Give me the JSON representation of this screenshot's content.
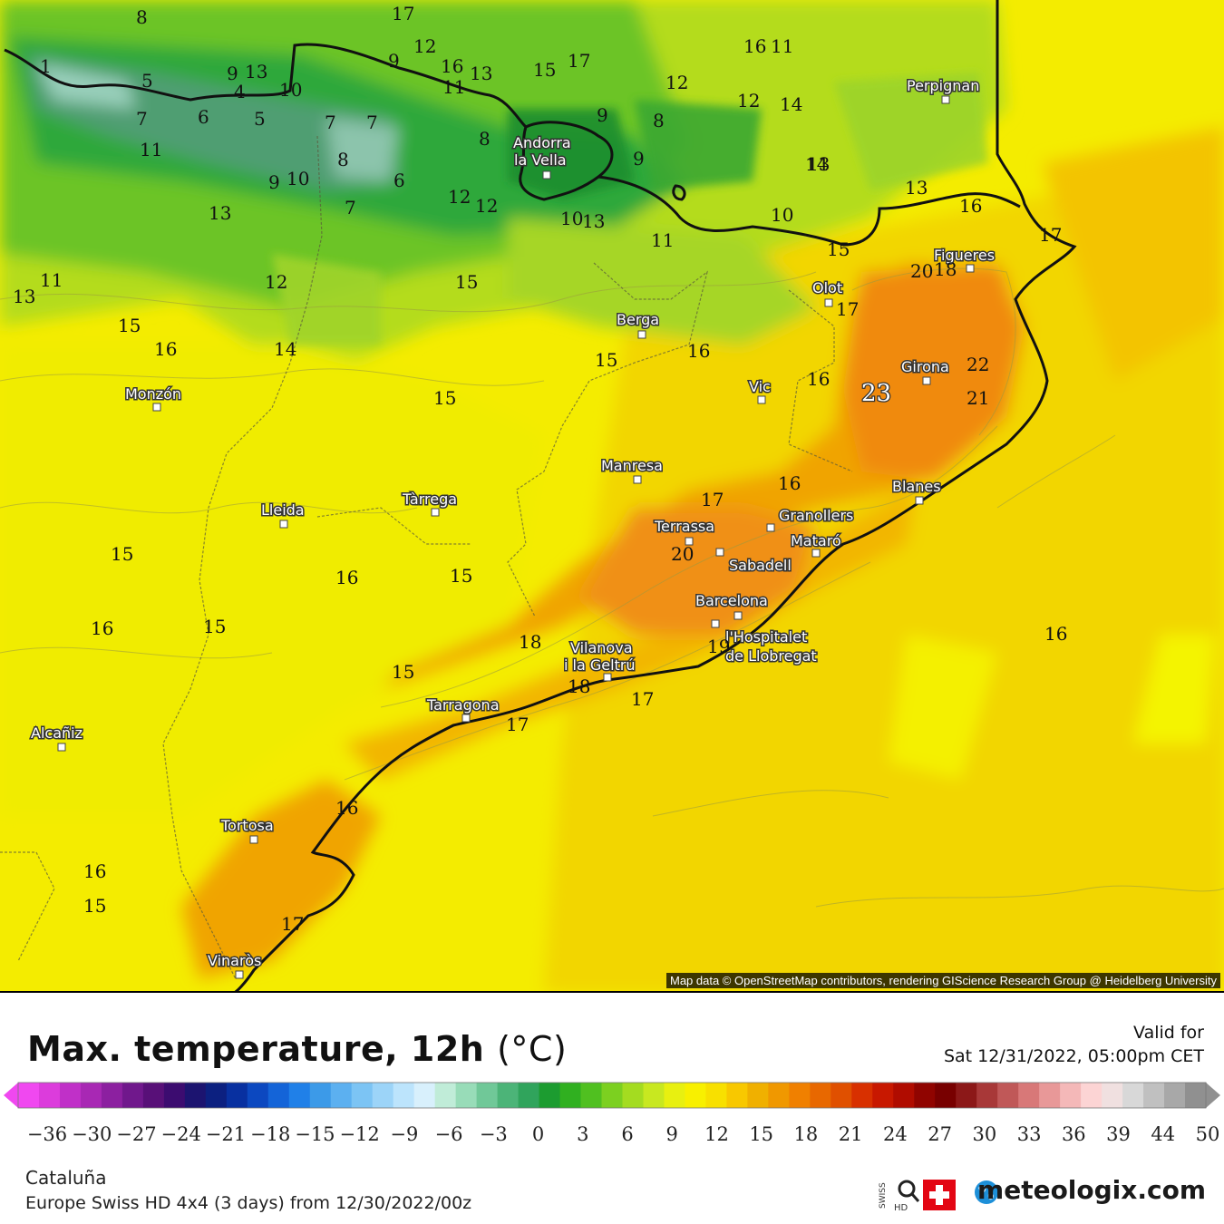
{
  "map": {
    "attribution": "Map data © OpenStreetMap contributors, rendering GIScience Research Group @ Heidelberg University",
    "cities": [
      {
        "name": "Perpignan"
      },
      {
        "name": "Andorra"
      },
      {
        "name": "la Vella"
      },
      {
        "name": "Figueres"
      },
      {
        "name": "Olot"
      },
      {
        "name": "Berga"
      },
      {
        "name": "Girona"
      },
      {
        "name": "Vic"
      },
      {
        "name": "Monzón"
      },
      {
        "name": "Manresa"
      },
      {
        "name": "Blanes"
      },
      {
        "name": "Tàrrega"
      },
      {
        "name": "Lleida"
      },
      {
        "name": "Granollers"
      },
      {
        "name": "Terrassa"
      },
      {
        "name": "Mataró"
      },
      {
        "name": "Sabadell"
      },
      {
        "name": "Barcelona"
      },
      {
        "name": "l'Hospitalet"
      },
      {
        "name": "de Llobregat"
      },
      {
        "name": "Vilanova"
      },
      {
        "name": "i la Geltrú"
      },
      {
        "name": "Tarragona"
      },
      {
        "name": "Alcañiz"
      },
      {
        "name": "Tortosa"
      },
      {
        "name": "Vinaròs"
      }
    ],
    "values": [
      "8",
      "17",
      "12",
      "16",
      "11",
      "1",
      "9",
      "13",
      "4",
      "10",
      "9",
      "12",
      "16",
      "13",
      "15",
      "17",
      "12",
      "13",
      "14",
      "11",
      "5",
      "6",
      "7",
      "5",
      "7",
      "7",
      "8",
      "9",
      "8",
      "11",
      "8",
      "6",
      "9",
      "10",
      "9",
      "12",
      "12",
      "10",
      "13",
      "14",
      "13",
      "16",
      "13",
      "7",
      "11",
      "10",
      "15",
      "17",
      "11",
      "12",
      "15",
      "13",
      "15",
      "14",
      "20",
      "18",
      "17",
      "16",
      "15",
      "15",
      "16",
      "16",
      "22",
      "23",
      "21",
      "15",
      "17",
      "16",
      "15",
      "16",
      "15",
      "16",
      "15",
      "20",
      "18",
      "19",
      "16",
      "17",
      "17",
      "18",
      "16",
      "16",
      "15",
      "17"
    ]
  },
  "header": {
    "title": "Max. temperature, 12h",
    "unit": "(°C)",
    "valid_label": "Valid for",
    "valid_date": "Sat 12/31/2022, 05:00pm CET"
  },
  "legend": {
    "ticks": [
      "−36",
      "−30",
      "−27",
      "−24",
      "−21",
      "−18",
      "−15",
      "−12",
      "−9",
      "−6",
      "−3",
      "0",
      "3",
      "6",
      "9",
      "12",
      "15",
      "18",
      "21",
      "24",
      "27",
      "30",
      "33",
      "36",
      "39",
      "44",
      "50"
    ],
    "colors": [
      "#f048f0",
      "#dc3cdc",
      "#c030c8",
      "#a828b4",
      "#8c20a0",
      "#70188c",
      "#581078",
      "#3c0c70",
      "#1c1470",
      "#0c2080",
      "#0830a0",
      "#0c48c0",
      "#1464d8",
      "#2080e8",
      "#3c9ae8",
      "#5cb0f0",
      "#7cc4f4",
      "#9cd4f8",
      "#bce4fc",
      "#d8f0fc",
      "#c0ecd8",
      "#98dcb8",
      "#70c898",
      "#4cb478",
      "#30a45c",
      "#1c9c30",
      "#30b020",
      "#50c020",
      "#7cd020",
      "#a4dc20",
      "#c8e820",
      "#e8f010",
      "#f8f000",
      "#f8e000",
      "#f8c800",
      "#f0b000",
      "#f09800",
      "#f08000",
      "#e86800",
      "#e05000",
      "#d83000",
      "#c81800",
      "#b00c00",
      "#900400",
      "#780000",
      "#8c1818",
      "#a83838",
      "#c05858",
      "#d87878",
      "#e89898",
      "#f4b8b8",
      "#fcd4d4",
      "#f0e0e0",
      "#d8d8d8",
      "#c0c0c0",
      "#a8a8a8",
      "#909090"
    ]
  },
  "footer": {
    "region": "Cataluña",
    "model": "Europe Swiss HD 4x4 (3 days) from 12/30/2022/00z",
    "swiss_label": "SWISS HD",
    "brand": "meteologix.com"
  }
}
